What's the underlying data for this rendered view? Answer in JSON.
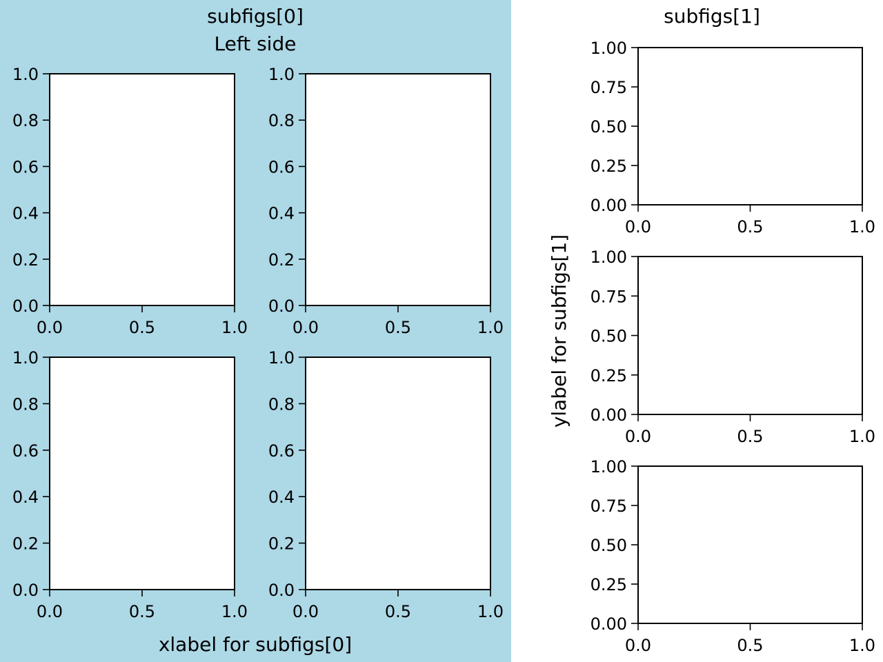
{
  "subfigures": [
    {
      "suptitle": "subfigs[0]\nLeft side",
      "suptitle_lines": [
        "subfigs[0]",
        "Left side"
      ],
      "supxlabel": "xlabel for subfigs[0]",
      "supylabel": "",
      "facecolor": "#add8e6"
    },
    {
      "suptitle": "subfigs[1]",
      "suptitle_lines": [
        "subfigs[1]"
      ],
      "supxlabel": "",
      "supylabel": "ylabel for subfigs[1]",
      "facecolor": "#ffffff"
    }
  ],
  "chart_data": [
    {
      "type": "line",
      "subfigure": 0,
      "grid_position": "row 1, col 1",
      "xlim": [
        0,
        1
      ],
      "ylim": [
        0,
        1
      ],
      "xticks": [
        "0.0",
        "0.5",
        "1.0"
      ],
      "yticks": [
        "0.0",
        "0.2",
        "0.4",
        "0.6",
        "0.8",
        "1.0"
      ],
      "series": [],
      "grid": false
    },
    {
      "type": "line",
      "subfigure": 0,
      "grid_position": "row 1, col 2",
      "xlim": [
        0,
        1
      ],
      "ylim": [
        0,
        1
      ],
      "xticks": [
        "0.0",
        "0.5",
        "1.0"
      ],
      "yticks": [
        "0.0",
        "0.2",
        "0.4",
        "0.6",
        "0.8",
        "1.0"
      ],
      "series": [],
      "grid": false
    },
    {
      "type": "line",
      "subfigure": 0,
      "grid_position": "row 2, col 1",
      "xlim": [
        0,
        1
      ],
      "ylim": [
        0,
        1
      ],
      "xticks": [
        "0.0",
        "0.5",
        "1.0"
      ],
      "yticks": [
        "0.0",
        "0.2",
        "0.4",
        "0.6",
        "0.8",
        "1.0"
      ],
      "series": [],
      "grid": false
    },
    {
      "type": "line",
      "subfigure": 0,
      "grid_position": "row 2, col 2",
      "xlim": [
        0,
        1
      ],
      "ylim": [
        0,
        1
      ],
      "xticks": [
        "0.0",
        "0.5",
        "1.0"
      ],
      "yticks": [
        "0.0",
        "0.2",
        "0.4",
        "0.6",
        "0.8",
        "1.0"
      ],
      "series": [],
      "grid": false
    },
    {
      "type": "line",
      "subfigure": 1,
      "grid_position": "row 1",
      "xlim": [
        0,
        1
      ],
      "ylim": [
        0,
        1
      ],
      "xticks": [
        "0.0",
        "0.5",
        "1.0"
      ],
      "yticks": [
        "0.00",
        "0.25",
        "0.50",
        "0.75",
        "1.00"
      ],
      "series": [],
      "grid": false
    },
    {
      "type": "line",
      "subfigure": 1,
      "grid_position": "row 2",
      "xlim": [
        0,
        1
      ],
      "ylim": [
        0,
        1
      ],
      "xticks": [
        "0.0",
        "0.5",
        "1.0"
      ],
      "yticks": [
        "0.00",
        "0.25",
        "0.50",
        "0.75",
        "1.00"
      ],
      "series": [],
      "grid": false
    },
    {
      "type": "line",
      "subfigure": 1,
      "grid_position": "row 3",
      "xlim": [
        0,
        1
      ],
      "ylim": [
        0,
        1
      ],
      "xticks": [
        "0.0",
        "0.5",
        "1.0"
      ],
      "yticks": [
        "0.00",
        "0.25",
        "0.50",
        "0.75",
        "1.00"
      ],
      "series": [],
      "grid": false
    }
  ]
}
